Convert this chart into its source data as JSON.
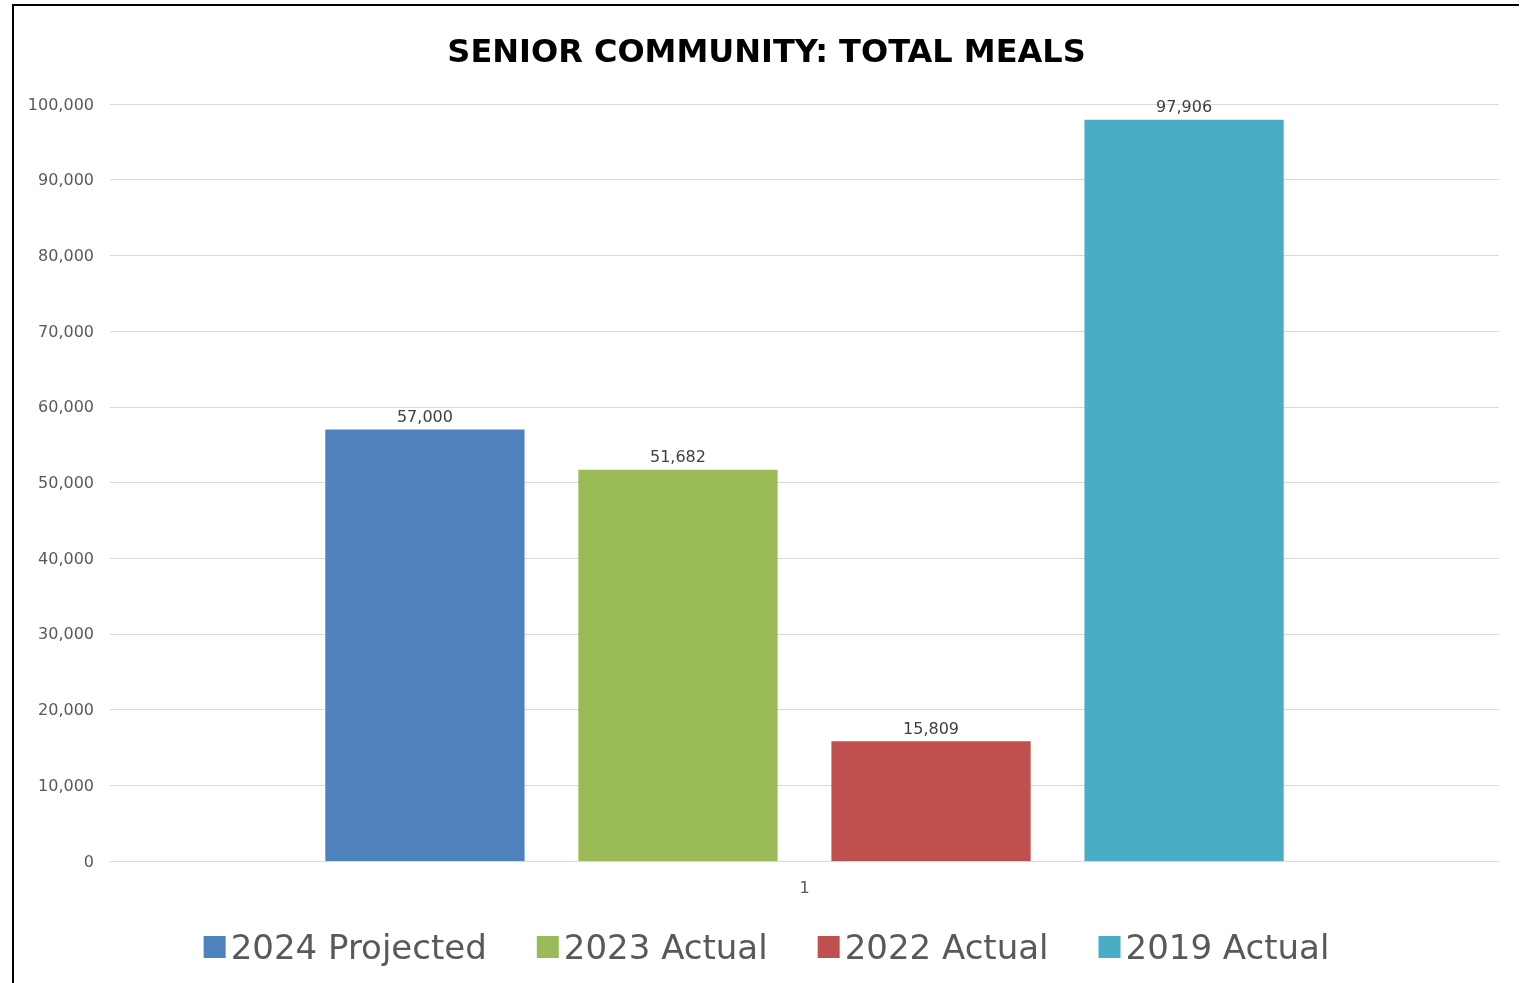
{
  "chart_data": {
    "type": "bar",
    "title": "SENIOR COMMUNITY: TOTAL MEALS",
    "categories": [
      "1"
    ],
    "series": [
      {
        "name": "2024 Projected",
        "color": "#4f81bd",
        "values": [
          57000
        ],
        "value_labels": [
          "57,000"
        ]
      },
      {
        "name": "2023 Actual",
        "color": "#9bbb59",
        "values": [
          51682
        ],
        "value_labels": [
          "51,682"
        ]
      },
      {
        "name": "2022 Actual",
        "color": "#c0504d",
        "values": [
          15809
        ],
        "value_labels": [
          "15,809"
        ]
      },
      {
        "name": "2019 Actual",
        "color": "#4bacc6",
        "values": [
          97906
        ],
        "value_labels": [
          "97,906"
        ]
      }
    ],
    "ylim": [
      0,
      100000
    ],
    "yticks": [
      0,
      {
        "value": 10000,
        "label": "10,000"
      },
      {
        "value": 20000,
        "label": "20,000"
      },
      {
        "value": 30000,
        "label": "30,000"
      },
      {
        "value": 40000,
        "label": "40,000"
      },
      {
        "value": 50000,
        "label": "50,000"
      },
      {
        "value": 60000,
        "label": "60,000"
      },
      {
        "value": 70000,
        "label": "70,000"
      },
      {
        "value": 80000,
        "label": "80,000"
      },
      {
        "value": 90000,
        "label": "90,000"
      },
      {
        "value": 100000,
        "label": "100,000"
      }
    ],
    "grid": "y",
    "legend": "bottom"
  }
}
